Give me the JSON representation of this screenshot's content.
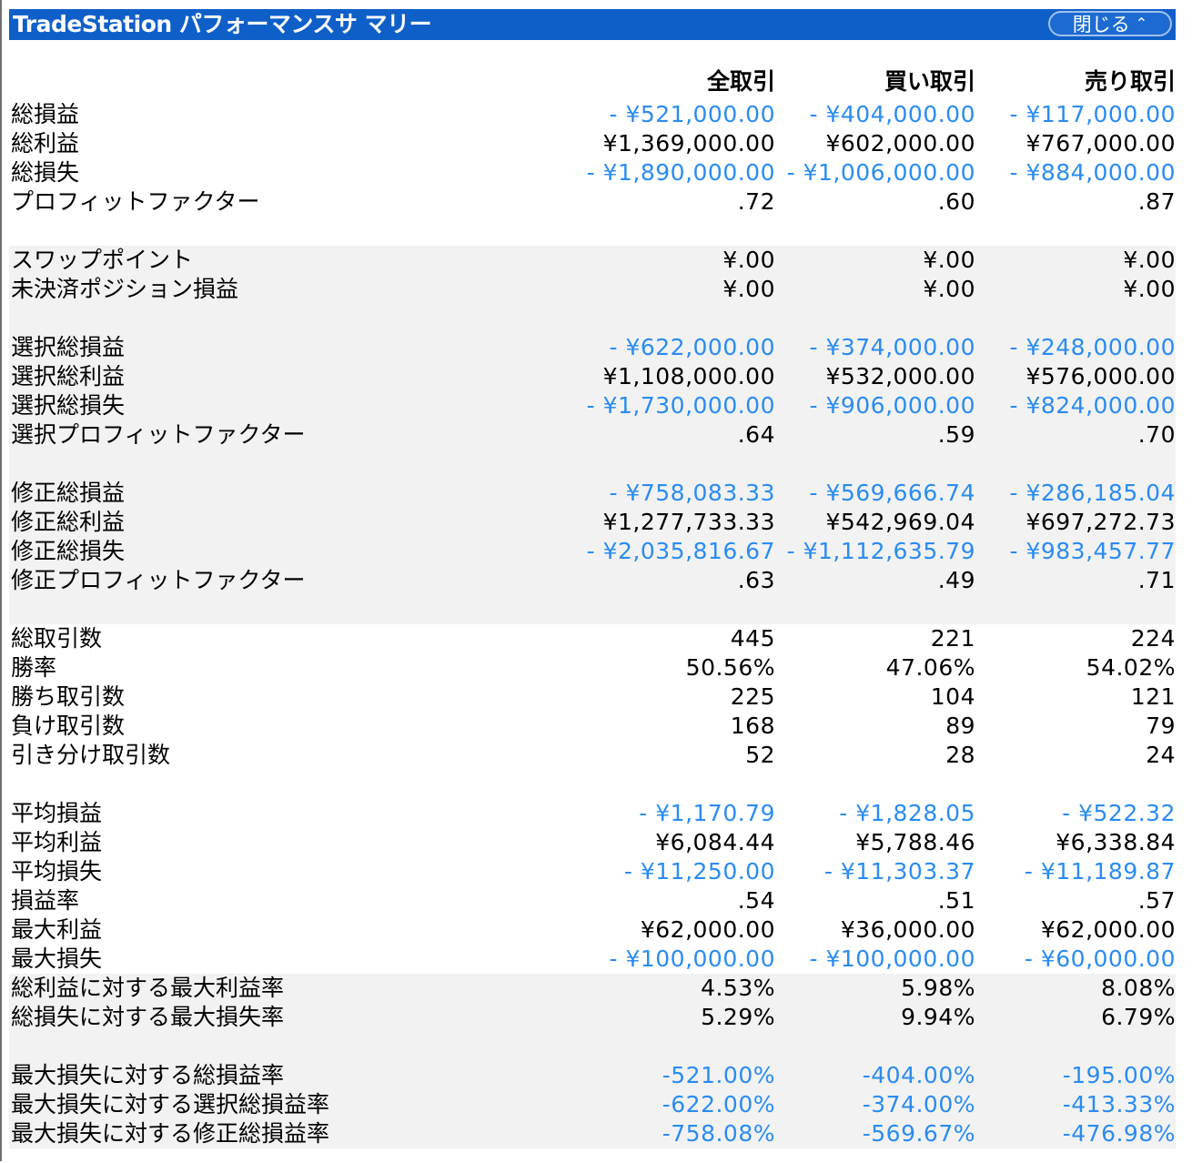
{
  "window": {
    "title": "TradeStation パフォーマンスサ マリー",
    "close_label": "閉じる",
    "close_icon": "chevron-up-icon"
  },
  "columns": [
    "全取引",
    "買い取引",
    "売り取引"
  ],
  "colors": {
    "title_bar": "#0f5fc9",
    "negative": "#2a8cf0",
    "band": "#f2f2f2"
  },
  "rows": [
    {
      "label": "総損益",
      "values": [
        "- ¥521,000.00",
        "- ¥404,000.00",
        "- ¥117,000.00"
      ],
      "neg": true
    },
    {
      "label": "総利益",
      "values": [
        "¥1,369,000.00",
        "¥602,000.00",
        "¥767,000.00"
      ],
      "neg": false
    },
    {
      "label": "総損失",
      "values": [
        "- ¥1,890,000.00",
        "- ¥1,006,000.00",
        "- ¥884,000.00"
      ],
      "neg": true
    },
    {
      "label": "プロフィットファクター",
      "values": [
        ".72",
        ".60",
        ".87"
      ],
      "neg": false
    },
    {
      "label": "",
      "values": [
        "",
        "",
        ""
      ],
      "neg": false
    },
    {
      "label": "スワップポイント",
      "values": [
        "¥.00",
        "¥.00",
        "¥.00"
      ],
      "neg": false
    },
    {
      "label": "未決済ポジション損益",
      "values": [
        "¥.00",
        "¥.00",
        "¥.00"
      ],
      "neg": false
    },
    {
      "label": "",
      "values": [
        "",
        "",
        ""
      ],
      "neg": false
    },
    {
      "label": "選択総損益",
      "values": [
        "- ¥622,000.00",
        "- ¥374,000.00",
        "- ¥248,000.00"
      ],
      "neg": true
    },
    {
      "label": "選択総利益",
      "values": [
        "¥1,108,000.00",
        "¥532,000.00",
        "¥576,000.00"
      ],
      "neg": false
    },
    {
      "label": "選択総損失",
      "values": [
        "- ¥1,730,000.00",
        "- ¥906,000.00",
        "- ¥824,000.00"
      ],
      "neg": true
    },
    {
      "label": "選択プロフィットファクター",
      "values": [
        ".64",
        ".59",
        ".70"
      ],
      "neg": false
    },
    {
      "label": "",
      "values": [
        "",
        "",
        ""
      ],
      "neg": false
    },
    {
      "label": "修正総損益",
      "values": [
        "- ¥758,083.33",
        "- ¥569,666.74",
        "- ¥286,185.04"
      ],
      "neg": true
    },
    {
      "label": "修正総利益",
      "values": [
        "¥1,277,733.33",
        "¥542,969.04",
        "¥697,272.73"
      ],
      "neg": false
    },
    {
      "label": "修正総損失",
      "values": [
        "- ¥2,035,816.67",
        "- ¥1,112,635.79",
        "- ¥983,457.77"
      ],
      "neg": true
    },
    {
      "label": "修正プロフィットファクター",
      "values": [
        ".63",
        ".49",
        ".71"
      ],
      "neg": false
    },
    {
      "label": "",
      "values": [
        "",
        "",
        ""
      ],
      "neg": false
    },
    {
      "label": "総取引数",
      "values": [
        "445",
        "221",
        "224"
      ],
      "neg": false
    },
    {
      "label": "勝率",
      "values": [
        "50.56%",
        "47.06%",
        "54.02%"
      ],
      "neg": false
    },
    {
      "label": "勝ち取引数",
      "values": [
        "225",
        "104",
        "121"
      ],
      "neg": false
    },
    {
      "label": "負け取引数",
      "values": [
        "168",
        "89",
        "79"
      ],
      "neg": false
    },
    {
      "label": "引き分け取引数",
      "values": [
        "52",
        "28",
        "24"
      ],
      "neg": false
    },
    {
      "label": "",
      "values": [
        "",
        "",
        ""
      ],
      "neg": false
    },
    {
      "label": "平均損益",
      "values": [
        "- ¥1,170.79",
        "- ¥1,828.05",
        "- ¥522.32"
      ],
      "neg": true
    },
    {
      "label": "平均利益",
      "values": [
        "¥6,084.44",
        "¥5,788.46",
        "¥6,338.84"
      ],
      "neg": false
    },
    {
      "label": "平均損失",
      "values": [
        "- ¥11,250.00",
        "- ¥11,303.37",
        "- ¥11,189.87"
      ],
      "neg": true
    },
    {
      "label": "損益率",
      "values": [
        ".54",
        ".51",
        ".57"
      ],
      "neg": false
    },
    {
      "label": "最大利益",
      "values": [
        "¥62,000.00",
        "¥36,000.00",
        "¥62,000.00"
      ],
      "neg": false
    },
    {
      "label": "最大損失",
      "values": [
        "- ¥100,000.00",
        "- ¥100,000.00",
        "- ¥60,000.00"
      ],
      "neg": true
    },
    {
      "label": "総利益に対する最大利益率",
      "values": [
        "4.53%",
        "5.98%",
        "8.08%"
      ],
      "neg": false
    },
    {
      "label": "総損失に対する最大損失率",
      "values": [
        "5.29%",
        "9.94%",
        "6.79%"
      ],
      "neg": false
    },
    {
      "label": "",
      "values": [
        "",
        "",
        ""
      ],
      "neg": false
    },
    {
      "label": "最大損失に対する総損益率",
      "values": [
        "-521.00%",
        "-404.00%",
        "-195.00%"
      ],
      "neg": true
    },
    {
      "label": "最大損失に対する選択総損益率",
      "values": [
        "-622.00%",
        "-374.00%",
        "-413.33%"
      ],
      "neg": true
    },
    {
      "label": "最大損失に対する修正総損益率",
      "values": [
        "-758.08%",
        "-569.67%",
        "-476.98%"
      ],
      "neg": true
    }
  ]
}
